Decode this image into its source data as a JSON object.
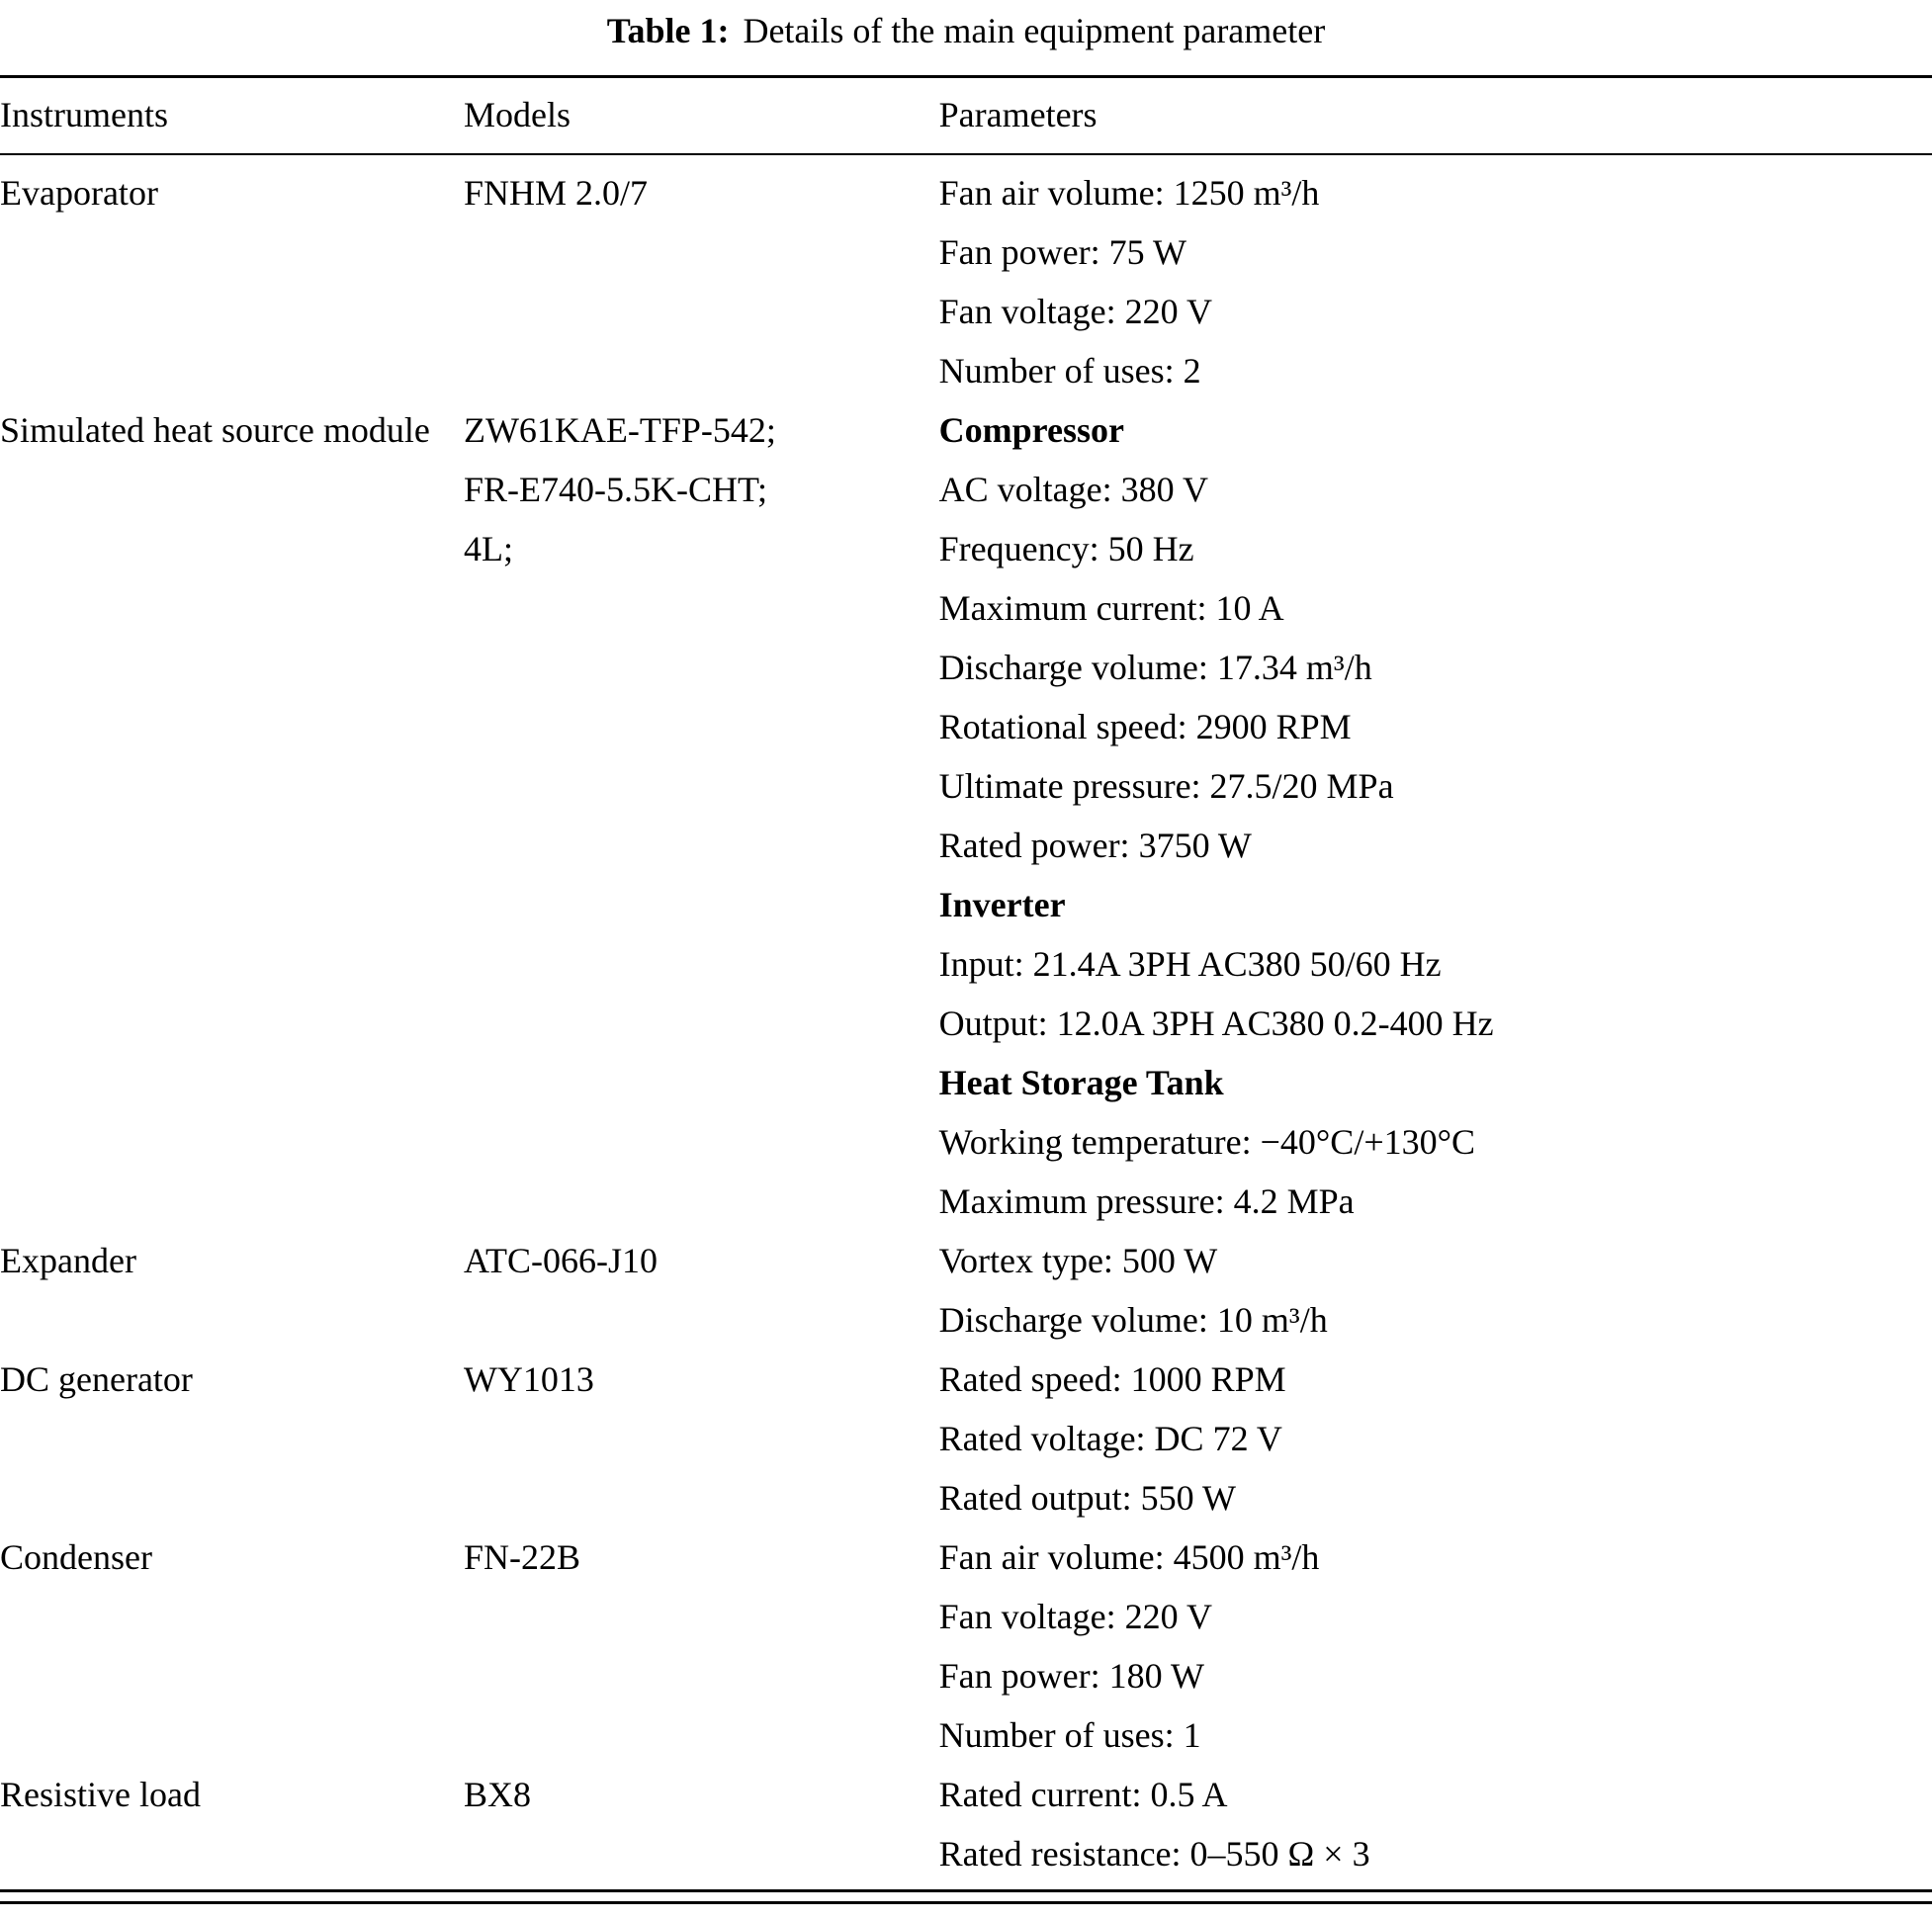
{
  "title": {
    "label": "Table 1:",
    "text": "Details of the main equipment parameter"
  },
  "columns": [
    "Instruments",
    "Models",
    "Parameters"
  ],
  "rows": [
    {
      "instrument": "Evaporator",
      "models": [
        "FNHM 2.0/7"
      ],
      "parameters": [
        {
          "text": "Fan air volume: 1250 m³/h"
        },
        {
          "text": "Fan power: 75 W"
        },
        {
          "text": "Fan voltage: 220 V"
        },
        {
          "text": "Number of uses: 2"
        }
      ]
    },
    {
      "instrument": "Simulated heat source module",
      "models": [
        "ZW61KAE-TFP-542;",
        "FR-E740-5.5K-CHT;",
        "4L;"
      ],
      "parameters": [
        {
          "text": "Compressor",
          "bold": true
        },
        {
          "text": "AC voltage: 380 V"
        },
        {
          "text": "Frequency: 50 Hz"
        },
        {
          "text": "Maximum current: 10 A"
        },
        {
          "text": "Discharge volume: 17.34 m³/h"
        },
        {
          "text": "Rotational speed: 2900 RPM"
        },
        {
          "text": "Ultimate pressure: 27.5/20 MPa"
        },
        {
          "text": "Rated power: 3750 W"
        },
        {
          "text": "Inverter",
          "bold": true
        },
        {
          "text": "Input: 21.4A 3PH AC380 50/60 Hz"
        },
        {
          "text": "Output: 12.0A 3PH AC380 0.2-400 Hz"
        },
        {
          "text": "Heat Storage Tank",
          "bold": true
        },
        {
          "text": "Working temperature: −40°C/+130°C"
        },
        {
          "text": "Maximum pressure: 4.2 MPa"
        }
      ]
    },
    {
      "instrument": "Expander",
      "models": [
        "ATC-066-J10"
      ],
      "parameters": [
        {
          "text": "Vortex type: 500 W"
        },
        {
          "text": "Discharge volume: 10 m³/h"
        }
      ]
    },
    {
      "instrument": "DC generator",
      "models": [
        "WY1013"
      ],
      "parameters": [
        {
          "text": "Rated speed: 1000 RPM"
        },
        {
          "text": "Rated voltage: DC 72 V"
        },
        {
          "text": "Rated output: 550 W"
        }
      ]
    },
    {
      "instrument": "Condenser",
      "models": [
        "FN-22B"
      ],
      "parameters": [
        {
          "text": "Fan air volume: 4500 m³/h"
        },
        {
          "text": "Fan voltage: 220 V"
        },
        {
          "text": "Fan power: 180 W"
        },
        {
          "text": "Number of uses: 1"
        }
      ]
    },
    {
      "instrument": "Resistive load",
      "models": [
        "BX8"
      ],
      "parameters": [
        {
          "text": "Rated current: 0.5 A"
        },
        {
          "text": "Rated resistance: 0–550 Ω × 3"
        }
      ]
    }
  ]
}
